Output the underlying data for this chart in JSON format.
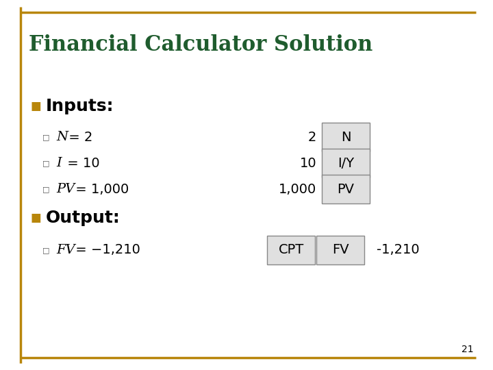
{
  "title": "Financial Calculator Solution",
  "title_color": "#1F5C2E",
  "title_fontsize": 22,
  "background_color": "#FFFFFF",
  "border_color": "#B8860B",
  "bullet_color": "#B8860B",
  "inputs_label": "Inputs:",
  "output_label": "Output:",
  "input_items": [
    {
      "text": "N",
      "value": "= 2"
    },
    {
      "text": "I",
      "value": "= 10"
    },
    {
      "text": "PV",
      "value": "= 1,000"
    }
  ],
  "output_items": [
    {
      "text": "FV",
      "value": "= −1,210"
    }
  ],
  "calculator_inputs": [
    {
      "value": "2",
      "key": "N"
    },
    {
      "value": "10",
      "key": "I/Y"
    },
    {
      "value": "1,000",
      "key": "PV"
    }
  ],
  "calculator_output": {
    "cpt": "CPT",
    "key": "FV",
    "result": "-1,210"
  },
  "box_fill": "#E0E0E0",
  "box_edge": "#888888",
  "page_number": "21",
  "section_fontsize": 18,
  "item_fontsize": 14,
  "calc_fontsize": 14
}
